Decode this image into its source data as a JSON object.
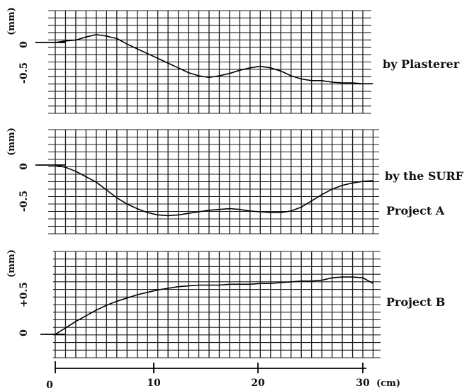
{
  "chart_data": [
    {
      "type": "line",
      "ylabel": "(mm)",
      "yticks": [
        "0",
        "-0.5"
      ],
      "label": "by Plasterer",
      "xlim": [
        0,
        31.5
      ],
      "ylim": [
        -0.85,
        0.4
      ],
      "x": [
        0,
        1,
        2,
        3,
        4,
        5,
        6,
        7,
        8,
        9,
        10,
        11,
        12,
        13,
        14,
        15,
        16,
        17,
        18,
        19,
        20,
        21,
        22,
        23,
        24,
        25,
        26,
        27,
        28,
        29,
        30,
        31
      ],
      "values": [
        0,
        0.02,
        0.03,
        0.07,
        0.1,
        0.08,
        0.05,
        -0.02,
        -0.08,
        -0.14,
        -0.2,
        -0.26,
        -0.32,
        -0.38,
        -0.42,
        -0.44,
        -0.42,
        -0.39,
        -0.35,
        -0.32,
        -0.3,
        -0.32,
        -0.36,
        -0.42,
        -0.46,
        -0.48,
        -0.48,
        -0.5,
        -0.51,
        -0.51,
        -0.52,
        -0.52
      ]
    },
    {
      "type": "line",
      "ylabel": "(mm)",
      "yticks": [
        "0",
        "-0.5"
      ],
      "label_lines": [
        "by the SURF",
        "Project A"
      ],
      "xlim": [
        0,
        31.5
      ],
      "ylim": [
        -0.9,
        0.4
      ],
      "x": [
        0,
        1,
        2,
        3,
        4,
        5,
        6,
        7,
        8,
        9,
        10,
        11,
        12,
        13,
        14,
        15,
        16,
        17,
        18,
        19,
        20,
        21,
        22,
        23,
        24,
        25,
        26,
        27,
        28,
        29,
        30,
        31
      ],
      "values": [
        0,
        -0.03,
        -0.08,
        -0.15,
        -0.22,
        -0.32,
        -0.42,
        -0.5,
        -0.56,
        -0.61,
        -0.64,
        -0.65,
        -0.64,
        -0.62,
        -0.6,
        -0.58,
        -0.57,
        -0.56,
        -0.57,
        -0.59,
        -0.6,
        -0.61,
        -0.61,
        -0.59,
        -0.54,
        -0.46,
        -0.38,
        -0.31,
        -0.26,
        -0.23,
        -0.21,
        -0.2
      ]
    },
    {
      "type": "line",
      "ylabel": "(mm)",
      "yticks": [
        "+0.5",
        "0"
      ],
      "label": "Project B",
      "xlim": [
        0,
        31.5
      ],
      "ylim": [
        -0.3,
        1.0
      ],
      "xticks": [
        "0",
        "10",
        "20",
        "30"
      ],
      "xunit": "(cm)",
      "x": [
        0,
        1,
        2,
        3,
        4,
        5,
        6,
        7,
        8,
        9,
        10,
        11,
        12,
        13,
        14,
        15,
        16,
        17,
        18,
        19,
        20,
        21,
        22,
        23,
        24,
        25,
        26,
        27,
        28,
        29,
        30,
        31
      ],
      "values": [
        0,
        0.08,
        0.16,
        0.23,
        0.3,
        0.36,
        0.41,
        0.45,
        0.49,
        0.52,
        0.55,
        0.57,
        0.59,
        0.6,
        0.61,
        0.61,
        0.61,
        0.62,
        0.62,
        0.62,
        0.63,
        0.63,
        0.64,
        0.65,
        0.66,
        0.66,
        0.67,
        0.7,
        0.71,
        0.71,
        0.7,
        0.63
      ]
    }
  ]
}
